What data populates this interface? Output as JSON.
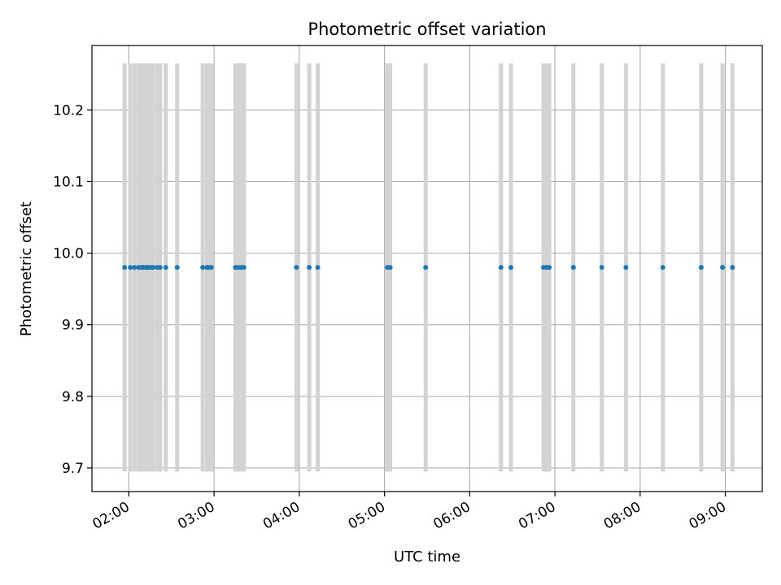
{
  "chart_data": {
    "type": "scatter",
    "title": "Photometric offset variation",
    "xlabel": "UTC time",
    "ylabel": "Photometric offset",
    "xlim": [
      "01:34",
      "09:26"
    ],
    "ylim": [
      9.667,
      10.29
    ],
    "grid": true,
    "x_ticks": [
      "02:00",
      "03:00",
      "04:00",
      "05:00",
      "06:00",
      "07:00",
      "08:00",
      "09:00"
    ],
    "y_ticks": [
      "9.7",
      "9.8",
      "9.9",
      "10.0",
      "10.1",
      "10.2"
    ],
    "bands": {
      "color": "#d3d3d3",
      "y_range": [
        9.695,
        10.265
      ],
      "times": [
        "01:57",
        "02:01",
        "02:04",
        "02:07",
        "02:09",
        "02:10",
        "02:12",
        "02:13",
        "02:14",
        "02:16",
        "02:17",
        "02:20",
        "02:22",
        "02:26",
        "02:34",
        "02:52",
        "02:55",
        "02:56",
        "02:58",
        "03:15",
        "03:17",
        "03:19",
        "03:21",
        "03:58",
        "04:07",
        "04:13",
        "05:02",
        "05:04",
        "05:29",
        "06:22",
        "06:29",
        "06:52",
        "06:54",
        "06:56",
        "07:13",
        "07:33",
        "07:50",
        "08:16",
        "08:43",
        "08:58",
        "09:05"
      ]
    },
    "series": [
      {
        "color": "#1f77b4",
        "points": [
          {
            "x": "01:57",
            "y": 9.98
          },
          {
            "x": "02:01",
            "y": 9.98
          },
          {
            "x": "02:04",
            "y": 9.98
          },
          {
            "x": "02:07",
            "y": 9.98
          },
          {
            "x": "02:09",
            "y": 9.98
          },
          {
            "x": "02:10",
            "y": 9.98
          },
          {
            "x": "02:12",
            "y": 9.98
          },
          {
            "x": "02:13",
            "y": 9.98
          },
          {
            "x": "02:14",
            "y": 9.98
          },
          {
            "x": "02:16",
            "y": 9.98
          },
          {
            "x": "02:17",
            "y": 9.98
          },
          {
            "x": "02:20",
            "y": 9.98
          },
          {
            "x": "02:22",
            "y": 9.98
          },
          {
            "x": "02:26",
            "y": 9.98
          },
          {
            "x": "02:34",
            "y": 9.98
          },
          {
            "x": "02:52",
            "y": 9.98
          },
          {
            "x": "02:55",
            "y": 9.98
          },
          {
            "x": "02:56",
            "y": 9.98
          },
          {
            "x": "02:58",
            "y": 9.98
          },
          {
            "x": "03:15",
            "y": 9.98
          },
          {
            "x": "03:17",
            "y": 9.98
          },
          {
            "x": "03:19",
            "y": 9.98
          },
          {
            "x": "03:21",
            "y": 9.98
          },
          {
            "x": "03:58",
            "y": 9.98
          },
          {
            "x": "04:07",
            "y": 9.98
          },
          {
            "x": "04:13",
            "y": 9.98
          },
          {
            "x": "05:02",
            "y": 9.98
          },
          {
            "x": "05:04",
            "y": 9.98
          },
          {
            "x": "05:29",
            "y": 9.98
          },
          {
            "x": "06:22",
            "y": 9.98
          },
          {
            "x": "06:29",
            "y": 9.98
          },
          {
            "x": "06:52",
            "y": 9.98
          },
          {
            "x": "06:54",
            "y": 9.98
          },
          {
            "x": "06:56",
            "y": 9.98
          },
          {
            "x": "07:13",
            "y": 9.98
          },
          {
            "x": "07:33",
            "y": 9.98
          },
          {
            "x": "07:50",
            "y": 9.98
          },
          {
            "x": "08:16",
            "y": 9.98
          },
          {
            "x": "08:43",
            "y": 9.98
          },
          {
            "x": "08:58",
            "y": 9.98
          },
          {
            "x": "09:05",
            "y": 9.98
          }
        ]
      }
    ]
  }
}
